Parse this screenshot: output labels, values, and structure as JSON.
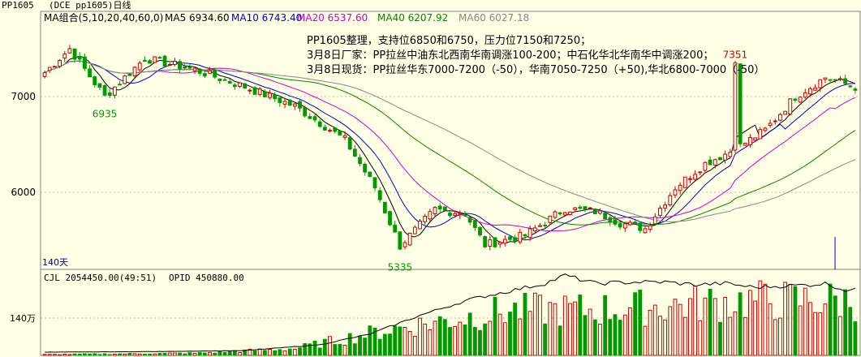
{
  "title_bar": {
    "symbol": "PP1605",
    "full": "(DCE pp1605)日线"
  },
  "ma_legend": [
    {
      "text": "MA组合(5,10,20,40,60,0)",
      "color": "#000000"
    },
    {
      "text": "MA5 6934.60",
      "color": "#000000"
    },
    {
      "text": "MA10 6743.40",
      "color": "#0000cc"
    },
    {
      "text": "MA20 6537.60",
      "color": "#cc00cc"
    },
    {
      "text": "MA40 6207.92",
      "color": "#008800"
    },
    {
      "text": "MA60 6027.18",
      "color": "#888888"
    }
  ],
  "notes": [
    "PP1605整理，支持位6850和6750，压力位7150和7250；",
    "3月8日厂家：PP拉丝中油东北西南华南调涨100-200；中石化华北华南华中调涨200；",
    "3月8日现货：PP拉丝华东7000-7200（-50），华南7050-7250（+50),华北6800-7000（-50）"
  ],
  "period_label": "140天",
  "volume_header": {
    "cjl": "CJL  2054450.00(49:51)",
    "opid": "OPID  450880.00"
  },
  "colors": {
    "up": "#cc0000",
    "down": "#009900",
    "ma5": "#000000",
    "ma10": "#0000cc",
    "ma20": "#cc00cc",
    "ma40": "#008800",
    "ma60": "#888888",
    "grid": "#b8b8a0"
  },
  "chart_data": [
    {
      "type": "candlestick",
      "title": "PP1605 日线",
      "y_ticks": [
        7000,
        6000
      ],
      "ylim": [
        5180,
        7800
      ],
      "annotations": [
        {
          "text": "7351",
          "value": 7351,
          "index": 138
        },
        {
          "text": "6935",
          "value": 6935,
          "index": 12
        },
        {
          "text": "5335",
          "value": 5335,
          "index": 71
        }
      ],
      "close_anchors": [
        [
          0,
          7250
        ],
        [
          5,
          7500
        ],
        [
          12,
          7000
        ],
        [
          20,
          7400
        ],
        [
          30,
          7280
        ],
        [
          40,
          7100
        ],
        [
          50,
          6900
        ],
        [
          60,
          6550
        ],
        [
          66,
          6050
        ],
        [
          71,
          5440
        ],
        [
          78,
          5820
        ],
        [
          84,
          5780
        ],
        [
          88,
          5450
        ],
        [
          96,
          5550
        ],
        [
          104,
          5830
        ],
        [
          110,
          5800
        ],
        [
          115,
          5680
        ],
        [
          120,
          5620
        ],
        [
          126,
          6050
        ],
        [
          132,
          6300
        ],
        [
          138,
          6450
        ],
        [
          144,
          6650
        ],
        [
          150,
          7000
        ],
        [
          156,
          7200
        ],
        [
          162,
          7100
        ]
      ],
      "series": [
        {
          "name": "MA5",
          "last": 6934.6
        },
        {
          "name": "MA10",
          "last": 6743.4
        },
        {
          "name": "MA20",
          "last": 6537.6
        },
        {
          "name": "MA40",
          "last": 6207.92
        },
        {
          "name": "MA60",
          "last": 6027.18
        }
      ]
    },
    {
      "type": "bar",
      "title": "CJL",
      "y_ticks": [
        {
          "label": "140万",
          "value": 1400000
        }
      ],
      "ylim": [
        0,
        4200000
      ],
      "volume_anchors": [
        [
          0,
          30000
        ],
        [
          30,
          80000
        ],
        [
          50,
          250000
        ],
        [
          62,
          700000
        ],
        [
          70,
          1000000
        ],
        [
          80,
          1300000
        ],
        [
          92,
          1650000
        ],
        [
          100,
          1700000
        ],
        [
          108,
          1700000
        ],
        [
          116,
          1750000
        ],
        [
          124,
          1850000
        ],
        [
          132,
          1950000
        ],
        [
          140,
          2050000
        ]
      ],
      "oi_anchors": [
        [
          0,
          120000
        ],
        [
          20,
          140000
        ],
        [
          40,
          180000
        ],
        [
          55,
          400000
        ],
        [
          65,
          800000
        ],
        [
          75,
          1500000
        ],
        [
          85,
          2100000
        ],
        [
          95,
          2500000
        ],
        [
          100,
          2700000
        ],
        [
          104,
          3000000
        ],
        [
          110,
          2700000
        ],
        [
          118,
          2750000
        ],
        [
          124,
          2750000
        ],
        [
          130,
          2650000
        ],
        [
          136,
          2700000
        ],
        [
          142,
          2550000
        ],
        [
          147,
          2600000
        ],
        [
          153,
          2650000
        ],
        [
          156,
          2700000
        ],
        [
          160,
          2450000
        ]
      ]
    }
  ]
}
